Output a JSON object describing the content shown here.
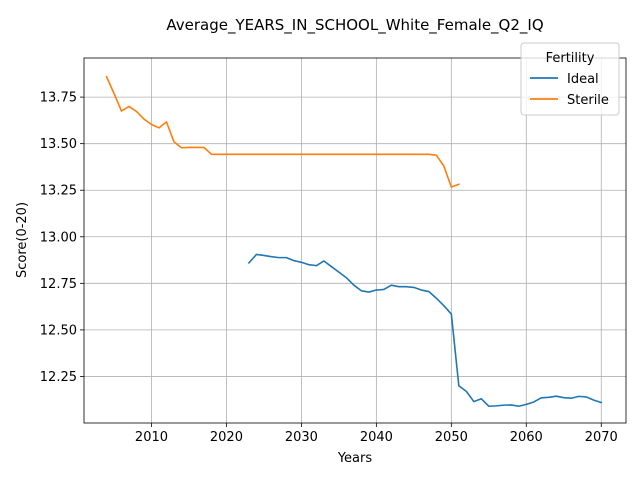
{
  "chart_data": {
    "type": "line",
    "title": "Average_YEARS_IN_SCHOOL_White_Female_Q2_IQ",
    "xlabel": "Years",
    "ylabel": "Score(0-20)",
    "xlim": [
      2001,
      2073.3
    ],
    "ylim": [
      12.0,
      13.96
    ],
    "xticks": [
      2010,
      2020,
      2030,
      2040,
      2050,
      2060,
      2070
    ],
    "yticks": [
      12.25,
      12.5,
      12.75,
      13.0,
      13.25,
      13.5,
      13.75
    ],
    "ytick_labels": [
      "12.25",
      "12.50",
      "12.75",
      "13.00",
      "13.25",
      "13.50",
      "13.75"
    ],
    "grid": true,
    "legend": {
      "title": "Fertility",
      "placement": "top-right"
    },
    "series": [
      {
        "name": "Ideal",
        "color": "#1f77b4",
        "points": [
          [
            2023,
            12.86
          ],
          [
            2024,
            12.905
          ],
          [
            2025,
            12.9
          ],
          [
            2026,
            12.893
          ],
          [
            2027,
            12.888
          ],
          [
            2028,
            12.888
          ],
          [
            2029,
            12.872
          ],
          [
            2030,
            12.863
          ],
          [
            2031,
            12.85
          ],
          [
            2032,
            12.845
          ],
          [
            2033,
            12.87
          ],
          [
            2034,
            12.84
          ],
          [
            2035,
            12.81
          ],
          [
            2036,
            12.78
          ],
          [
            2037,
            12.74
          ],
          [
            2038,
            12.71
          ],
          [
            2039,
            12.703
          ],
          [
            2040,
            12.714
          ],
          [
            2041,
            12.717
          ],
          [
            2042,
            12.74
          ],
          [
            2043,
            12.732
          ],
          [
            2044,
            12.732
          ],
          [
            2045,
            12.728
          ],
          [
            2046,
            12.714
          ],
          [
            2047,
            12.706
          ],
          [
            2048,
            12.67
          ],
          [
            2049,
            12.63
          ],
          [
            2050,
            12.585
          ],
          [
            2051,
            12.2
          ],
          [
            2052,
            12.17
          ],
          [
            2053,
            12.115
          ],
          [
            2054,
            12.13
          ],
          [
            2055,
            12.09
          ],
          [
            2056,
            12.092
          ],
          [
            2057,
            12.096
          ],
          [
            2058,
            12.097
          ],
          [
            2059,
            12.09
          ],
          [
            2060,
            12.1
          ],
          [
            2061,
            12.113
          ],
          [
            2062,
            12.135
          ],
          [
            2063,
            12.138
          ],
          [
            2064,
            12.144
          ],
          [
            2065,
            12.136
          ],
          [
            2066,
            12.133
          ],
          [
            2067,
            12.143
          ],
          [
            2068,
            12.14
          ],
          [
            2069,
            12.123
          ],
          [
            2070,
            12.11
          ]
        ]
      },
      {
        "name": "Sterile",
        "color": "#ff7f0e",
        "points": [
          [
            2004,
            13.86
          ],
          [
            2005,
            13.77
          ],
          [
            2006,
            13.675
          ],
          [
            2007,
            13.7
          ],
          [
            2008,
            13.673
          ],
          [
            2009,
            13.632
          ],
          [
            2010,
            13.603
          ],
          [
            2011,
            13.585
          ],
          [
            2012,
            13.617
          ],
          [
            2013,
            13.51
          ],
          [
            2014,
            13.478
          ],
          [
            2015,
            13.48
          ],
          [
            2016,
            13.48
          ],
          [
            2017,
            13.48
          ],
          [
            2018,
            13.443
          ],
          [
            2019,
            13.443
          ],
          [
            2020,
            13.443
          ],
          [
            2025,
            13.443
          ],
          [
            2030,
            13.443
          ],
          [
            2035,
            13.443
          ],
          [
            2040,
            13.443
          ],
          [
            2045,
            13.443
          ],
          [
            2046,
            13.443
          ],
          [
            2047,
            13.443
          ],
          [
            2048,
            13.438
          ],
          [
            2049,
            13.38
          ],
          [
            2050,
            13.267
          ],
          [
            2051,
            13.282
          ]
        ]
      }
    ]
  }
}
